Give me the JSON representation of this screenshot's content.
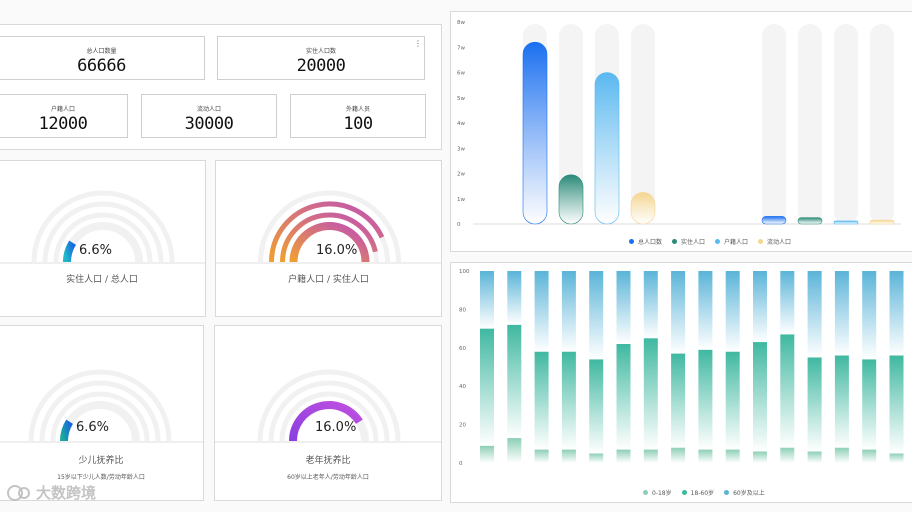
{
  "stats": {
    "total_population": {
      "label": "总人口数量",
      "value": "66666"
    },
    "resident_population": {
      "label": "实住人口数",
      "value": "20000"
    },
    "registered_population": {
      "label": "户籍人口",
      "value": "12000"
    },
    "floating_population": {
      "label": "流动人口",
      "value": "30000"
    },
    "foreign_population": {
      "label": "外籍人员",
      "value": "100"
    }
  },
  "gauges": [
    {
      "value": "6.6%",
      "percent": 6.6,
      "label": "实住人口 / 总人口",
      "sub": "",
      "color_start": "#1fb8c8",
      "color_end": "#1a66e0"
    },
    {
      "value": "16.0%",
      "percent": 16.0,
      "label": "户籍人口 / 实住人口",
      "sub": "",
      "color_start": "#f0a030",
      "color_end": "#c050b8"
    },
    {
      "value": "6.6%",
      "percent": 6.6,
      "label": "少儿抚养比",
      "sub": "15岁以下少儿人数/劳动年龄人口",
      "color_start": "#19a8a0",
      "color_end": "#1a66e0"
    },
    {
      "value": "16.0%",
      "percent": 16.0,
      "label": "老年抚养比",
      "sub": "60岁以上老年人/劳动年龄人口",
      "color_start": "#8a3fe0",
      "color_end": "#c050e0"
    }
  ],
  "chart_data": [
    {
      "type": "bar",
      "yticks": [
        "0",
        "1w",
        "2w",
        "3w",
        "4w",
        "5w",
        "6w",
        "7w",
        "8w"
      ],
      "ylim": [
        0,
        80000
      ],
      "legend_position": "bottom",
      "series": [
        {
          "name": "总人口数",
          "color": "#1a6ff0",
          "values": [
            72000,
            null,
            null,
            null,
            null,
            null,
            3000,
            null,
            null,
            null
          ]
        },
        {
          "name": "实住人口",
          "color": "#2a8a78",
          "values": [
            null,
            19500,
            null,
            null,
            null,
            null,
            null,
            2500,
            null,
            null
          ]
        },
        {
          "name": "户籍人口",
          "color": "#5ab8f0",
          "values": [
            null,
            null,
            60000,
            null,
            null,
            null,
            null,
            null,
            1200,
            null
          ]
        },
        {
          "name": "流动人口",
          "color": "#f5d590",
          "values": [
            null,
            null,
            null,
            12500,
            null,
            null,
            null,
            null,
            null,
            1500
          ]
        }
      ],
      "background_columns": [
        true,
        true,
        true,
        true,
        false,
        false,
        true,
        true,
        true,
        true
      ]
    },
    {
      "type": "bar",
      "stacked": true,
      "yticks": [
        "0",
        "20",
        "40",
        "60",
        "80",
        "100"
      ],
      "ylim": [
        0,
        100
      ],
      "legend_position": "bottom",
      "series": [
        {
          "name": "0-18岁",
          "color": "#8ccfb5",
          "values": [
            9,
            13,
            7,
            7,
            5,
            7,
            7,
            8,
            7,
            7,
            6,
            8,
            6,
            8,
            7,
            5
          ]
        },
        {
          "name": "18-60岁",
          "color": "#3fb8a0",
          "values": [
            61,
            59,
            51,
            51,
            49,
            55,
            58,
            49,
            52,
            51,
            57,
            59,
            49,
            48,
            47,
            51
          ]
        },
        {
          "name": "60岁及以上",
          "color": "#5ab4d8",
          "values": [
            30,
            28,
            42,
            42,
            46,
            38,
            35,
            43,
            41,
            42,
            37,
            33,
            45,
            44,
            46,
            44
          ]
        }
      ]
    }
  ],
  "watermark": {
    "text": "大数跨境"
  }
}
